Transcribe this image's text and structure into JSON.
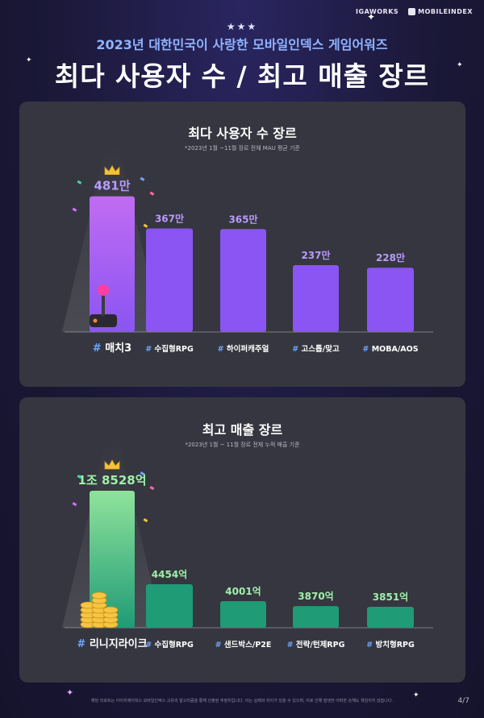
{
  "header": {
    "logos": [
      "IGAWORKS",
      "MOBILEINDEX"
    ],
    "subtitle": "2023년 대한민국이 사랑한 모바일인덱스 게임어워즈",
    "title": "최다 사용자 수 / 최고 매출 장르"
  },
  "colors": {
    "bg": "#1b1838",
    "panel": "#35363f",
    "purple_bar": "#8a55f2",
    "purple_top": "#c06cf2",
    "green_bar": "#1f9b76",
    "green_top": "#8fe39b",
    "purple_label": "#b99aff",
    "green_label": "#9ff0a8",
    "hash_color": "#6ea4ff"
  },
  "chart_data": [
    {
      "type": "bar",
      "title": "최다 사용자 수 장르",
      "note": "*2023년 1월 ~11월 장르 전체 MAU 평균 기준",
      "categories": [
        "매치3",
        "수집형RPG",
        "하이퍼캐주얼",
        "고스톱/맞고",
        "MOBA/AOS"
      ],
      "values": [
        481,
        367,
        365,
        237,
        228
      ],
      "value_labels": [
        "481만",
        "367만",
        "365만",
        "237만",
        "228만"
      ],
      "unit": "만",
      "highlight_index": 0,
      "ylim": [
        0,
        500
      ]
    },
    {
      "type": "bar",
      "title": "최고 매출 장르",
      "note": "*2023년 1월 ~ 11월 장르 전체 누적 매출 기준",
      "categories": [
        "리니지라이크",
        "수집형RPG",
        "샌드박스/P2E",
        "전략/턴제RPG",
        "방치형RPG"
      ],
      "values": [
        18528,
        4454,
        4001,
        3870,
        3851
      ],
      "value_labels": [
        "1조 8528억",
        "4454억",
        "4001억",
        "3870억",
        "3851억"
      ],
      "unit": "억",
      "highlight_index": 0,
      "ylim": [
        0,
        18528
      ]
    }
  ],
  "footer": {
    "note": "해당 리포트는 아이지에이웍스 모바일인덱스 고유의 알고리즘을 통해 산출된 추정치입니다. 이는 실제와 차이가 있을 수 있으며, 이로 인해 발생한 어떠한 손해도 책임지지 않습니다.",
    "page": "4/7"
  }
}
